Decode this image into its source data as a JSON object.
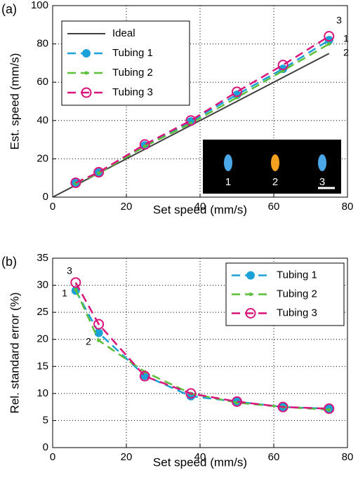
{
  "chart_data": [
    {
      "type": "line",
      "panel_label": "(a)",
      "xlabel": "Set speed (mm/s)",
      "ylabel": "Est. speed (mm/s)",
      "xlim": [
        0,
        80
      ],
      "ylim": [
        0,
        100
      ],
      "xticks": [
        0,
        20,
        40,
        60,
        80
      ],
      "yticks": [
        0,
        20,
        40,
        60,
        80,
        100
      ],
      "grid": true,
      "legend": "upper left",
      "x": [
        6.25,
        12.5,
        25,
        37.5,
        50,
        62.5,
        75
      ],
      "series": [
        {
          "name": "Ideal",
          "color": "#404040",
          "marker": "none",
          "dash": false,
          "x": [
            0,
            75
          ],
          "values": [
            0,
            75
          ]
        },
        {
          "name": "Tubing 1",
          "color": "#1ba1d8",
          "marker": "filled",
          "dash": true,
          "values": [
            7.5,
            12.8,
            27,
            39.5,
            53.5,
            67,
            82
          ]
        },
        {
          "name": "Tubing 2",
          "color": "#5cbf3a",
          "marker": "dot",
          "dash": true,
          "values": [
            7.2,
            12.5,
            26.5,
            38.5,
            52,
            66,
            80
          ]
        },
        {
          "name": "Tubing 3",
          "color": "#d9147a",
          "marker": "open",
          "dash": true,
          "values": [
            7.5,
            13,
            27.5,
            40,
            55,
            69,
            84
          ]
        }
      ],
      "annotations": [
        "3",
        "1",
        "2"
      ],
      "inset_labels": [
        "1",
        "2",
        "3"
      ]
    },
    {
      "type": "line",
      "panel_label": "(b)",
      "xlabel": "Set speed (mm/s)",
      "ylabel": "Rel. standard error (%)",
      "xlim": [
        0,
        80
      ],
      "ylim": [
        0,
        35
      ],
      "xticks": [
        0,
        20,
        40,
        60,
        80
      ],
      "yticks": [
        0,
        5,
        10,
        15,
        20,
        25,
        30,
        35
      ],
      "grid": true,
      "legend": "upper right",
      "x": [
        6.25,
        12.5,
        25,
        37.5,
        50,
        62.5,
        75
      ],
      "series": [
        {
          "name": "Tubing 1",
          "color": "#1ba1d8",
          "marker": "filled",
          "dash": true,
          "values": [
            29,
            21.2,
            13.3,
            9.5,
            8.5,
            7.5,
            7.2
          ]
        },
        {
          "name": "Tubing 2",
          "color": "#5cbf3a",
          "marker": "dot",
          "dash": true,
          "values": [
            29.2,
            19.8,
            14,
            10,
            8.3,
            7.5,
            7
          ]
        },
        {
          "name": "Tubing 3",
          "color": "#d9147a",
          "marker": "open",
          "dash": true,
          "values": [
            30.5,
            22.8,
            13.2,
            10,
            8.5,
            7.5,
            7.2
          ]
        }
      ],
      "annotations": [
        "3",
        "1",
        "2"
      ]
    }
  ]
}
